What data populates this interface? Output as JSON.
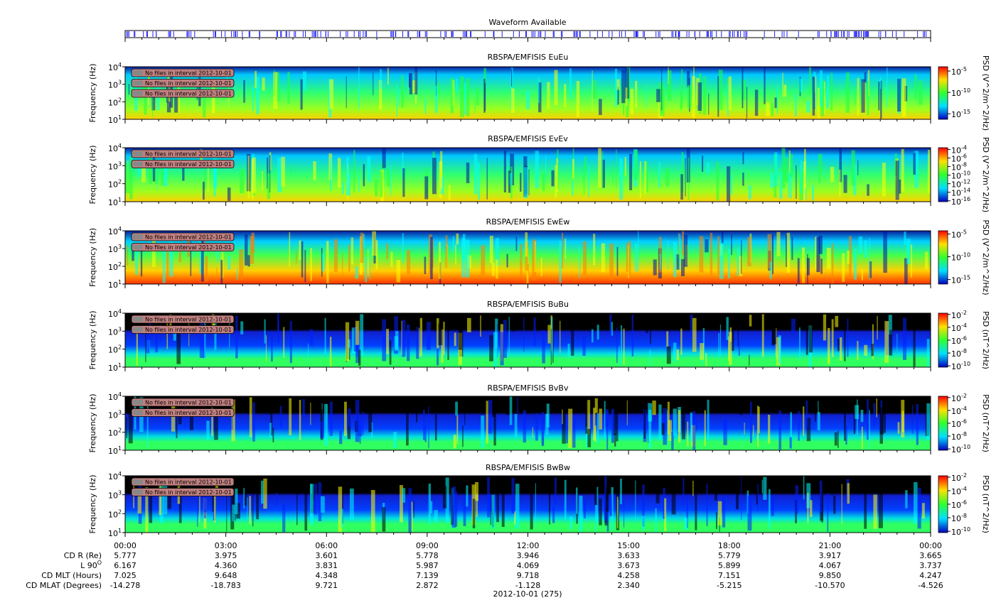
{
  "waveform": {
    "title": "Waveform Available"
  },
  "panels": [
    {
      "title": "RBSPA/EMFISIS  EuEu",
      "ylabel": "Frequency (Hz)",
      "kind": "E",
      "ylim": [
        10,
        10000
      ],
      "yticks": [
        {
          "value": 10,
          "base": "10",
          "exp": "1"
        },
        {
          "value": 100,
          "base": "10",
          "exp": "2"
        },
        {
          "value": 1000,
          "base": "10",
          "exp": "3"
        },
        {
          "value": 10000,
          "base": "10",
          "exp": "4"
        }
      ],
      "notes": [
        "No files in interval 2012-10-01",
        "No files in interval 2012-10-01",
        "No files in interval 2012-10-01"
      ],
      "colorbar": {
        "label": "PSD (V^2/m^2/Hz)",
        "clim": [
          -16.3,
          -4
        ],
        "ticks": [
          {
            "value": -5,
            "base": "10",
            "exp": "-5"
          },
          {
            "value": -10,
            "base": "10",
            "exp": "-10"
          },
          {
            "value": -15,
            "base": "10",
            "exp": "-15"
          }
        ]
      }
    },
    {
      "title": "RBSPA/EMFISIS  EvEv",
      "ylabel": "Frequency (Hz)",
      "kind": "E",
      "ylim": [
        10,
        10000
      ],
      "yticks": [
        {
          "value": 10,
          "base": "10",
          "exp": "1"
        },
        {
          "value": 100,
          "base": "10",
          "exp": "2"
        },
        {
          "value": 1000,
          "base": "10",
          "exp": "3"
        },
        {
          "value": 10000,
          "base": "10",
          "exp": "4"
        }
      ],
      "notes": [
        "No files in interval 2012-10-01",
        "No files in interval 2012-10-01"
      ],
      "colorbar": {
        "label": "PSD (V^2/m^2/Hz)",
        "clim": [
          -16.2,
          -3.6
        ],
        "ticks": [
          {
            "value": -4,
            "base": "10",
            "exp": "-4"
          },
          {
            "value": -6,
            "base": "10",
            "exp": "-6"
          },
          {
            "value": -8,
            "base": "10",
            "exp": "-8"
          },
          {
            "value": -10,
            "base": "10",
            "exp": "-10"
          },
          {
            "value": -12,
            "base": "10",
            "exp": "-12"
          },
          {
            "value": -14,
            "base": "10",
            "exp": "-14"
          },
          {
            "value": -16,
            "base": "10",
            "exp": "-16"
          }
        ]
      }
    },
    {
      "title": "RBSPA/EMFISIS  EwEw",
      "ylabel": "Frequency (Hz)",
      "kind": "W",
      "ylim": [
        10,
        10000
      ],
      "yticks": [
        {
          "value": 10,
          "base": "10",
          "exp": "1"
        },
        {
          "value": 100,
          "base": "10",
          "exp": "2"
        },
        {
          "value": 1000,
          "base": "10",
          "exp": "3"
        },
        {
          "value": 10000,
          "base": "10",
          "exp": "4"
        }
      ],
      "notes": [
        "No files in interval 2012-10-01",
        "No files in interval 2012-10-01"
      ],
      "colorbar": {
        "label": "PSD (V^2/m^2/Hz)",
        "clim": [
          -16,
          -4.3
        ],
        "ticks": [
          {
            "value": -5,
            "base": "10",
            "exp": "-5"
          },
          {
            "value": -10,
            "base": "10",
            "exp": "-10"
          },
          {
            "value": -15,
            "base": "10",
            "exp": "-15"
          }
        ]
      }
    },
    {
      "title": "RBSPA/EMFISIS  BuBu",
      "ylabel": "Frequency (Hz)",
      "kind": "B",
      "ylim": [
        10,
        10000
      ],
      "yticks": [
        {
          "value": 10,
          "base": "10",
          "exp": "1"
        },
        {
          "value": 100,
          "base": "10",
          "exp": "2"
        },
        {
          "value": 1000,
          "base": "10",
          "exp": "3"
        },
        {
          "value": 10000,
          "base": "10",
          "exp": "4"
        }
      ],
      "notes": [
        "No files in interval 2012-10-01",
        "No files in interval 2012-10-01"
      ],
      "colorbar": {
        "label": "PSD (nT^2/Hz)",
        "clim": [
          -10.2,
          -1.8
        ],
        "ticks": [
          {
            "value": -2,
            "base": "10",
            "exp": "-2"
          },
          {
            "value": -4,
            "base": "10",
            "exp": "-4"
          },
          {
            "value": -6,
            "base": "10",
            "exp": "-6"
          },
          {
            "value": -8,
            "base": "10",
            "exp": "-8"
          },
          {
            "value": -10,
            "base": "10",
            "exp": "-10"
          }
        ]
      }
    },
    {
      "title": "RBSPA/EMFISIS  BvBv",
      "ylabel": "Frequency (Hz)",
      "kind": "B",
      "ylim": [
        10,
        10000
      ],
      "yticks": [
        {
          "value": 10,
          "base": "10",
          "exp": "1"
        },
        {
          "value": 100,
          "base": "10",
          "exp": "2"
        },
        {
          "value": 1000,
          "base": "10",
          "exp": "3"
        },
        {
          "value": 10000,
          "base": "10",
          "exp": "4"
        }
      ],
      "notes": [
        "No files in interval 2012-10-01",
        "No files in interval 2012-10-01"
      ],
      "colorbar": {
        "label": "PSD (nT^2/Hz)",
        "clim": [
          -10.2,
          -1.8
        ],
        "ticks": [
          {
            "value": -2,
            "base": "10",
            "exp": "-2"
          },
          {
            "value": -4,
            "base": "10",
            "exp": "-4"
          },
          {
            "value": -6,
            "base": "10",
            "exp": "-6"
          },
          {
            "value": -8,
            "base": "10",
            "exp": "-8"
          },
          {
            "value": -10,
            "base": "10",
            "exp": "-10"
          }
        ]
      }
    },
    {
      "title": "RBSPA/EMFISIS  BwBw",
      "ylabel": "Frequency (Hz)",
      "kind": "B",
      "ylim": [
        10,
        10000
      ],
      "yticks": [
        {
          "value": 10,
          "base": "10",
          "exp": "1"
        },
        {
          "value": 100,
          "base": "10",
          "exp": "2"
        },
        {
          "value": 1000,
          "base": "10",
          "exp": "3"
        },
        {
          "value": 10000,
          "base": "10",
          "exp": "4"
        }
      ],
      "notes": [
        "No files in interval 2012-10-01",
        "No files in interval 2012-10-01"
      ],
      "colorbar": {
        "label": "PSD (nT^2/Hz)",
        "clim": [
          -10.2,
          -1.8
        ],
        "ticks": [
          {
            "value": -2,
            "base": "10",
            "exp": "-2"
          },
          {
            "value": -4,
            "base": "10",
            "exp": "-4"
          },
          {
            "value": -6,
            "base": "10",
            "exp": "-6"
          },
          {
            "value": -8,
            "base": "10",
            "exp": "-8"
          },
          {
            "value": -10,
            "base": "10",
            "exp": "-10"
          }
        ]
      }
    }
  ],
  "xticks": [
    "00:00",
    "03:00",
    "06:00",
    "09:00",
    "12:00",
    "15:00",
    "18:00",
    "21:00",
    "00:00"
  ],
  "ephemeris": {
    "labels": [
      {
        "base": "CD R (Re)"
      },
      {
        "base": "L 90",
        "sup": "O"
      },
      {
        "base": "CD MLT (Hours)"
      },
      {
        "base": "CD MLAT (Degrees)"
      }
    ],
    "rows": [
      [
        "5.777",
        "3.975",
        "3.601",
        "5.778",
        "3.946",
        "3.633",
        "5.779",
        "3.917",
        "3.665"
      ],
      [
        "6.167",
        "4.360",
        "3.831",
        "5.987",
        "4.069",
        "3.673",
        "5.899",
        "4.067",
        "3.737"
      ],
      [
        "7.025",
        "9.648",
        "4.348",
        "7.139",
        "9.718",
        "4.258",
        "7.151",
        "9.850",
        "4.247"
      ],
      [
        "-14.278",
        "-18.783",
        "9.721",
        "2.872",
        "-1.128",
        "2.340",
        "-5.215",
        "-10.570",
        "-4.526"
      ]
    ]
  },
  "date": "2012-10-01 (275)"
}
